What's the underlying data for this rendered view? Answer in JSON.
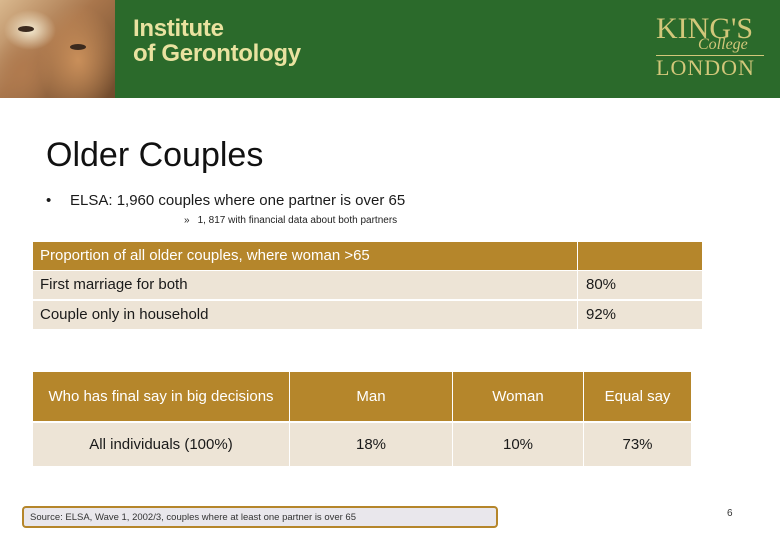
{
  "header": {
    "institute_line1": "Institute",
    "institute_line2": "of Gerontology",
    "logo_line1": "KING'S",
    "logo_line2": "College",
    "logo_line3": "LONDON",
    "banner_color": "#2b6a2b",
    "logo_color": "#d2c77a"
  },
  "slide": {
    "title": "Older Couples",
    "bullet_marker": "•",
    "bullet_text": "ELSA: 1,960 couples where one partner is over 65",
    "sub_marker": "»",
    "sub_text": "1, 817 with financial data about both partners"
  },
  "table1": {
    "header": "Proportion of all older couples, where woman >65",
    "header_value": "",
    "rows": [
      {
        "label": "First marriage for both",
        "value": "80%"
      },
      {
        "label": "Couple only in household",
        "value": "92%"
      }
    ]
  },
  "table2": {
    "headers": [
      "Who has final say in big decisions",
      "Man",
      "Woman",
      "Equal say"
    ],
    "row": [
      "All individuals (100%)",
      "18%",
      "10%",
      "73%"
    ]
  },
  "footer": {
    "source": "Source: ELSA, Wave 1, 2002/3, couples where at least one partner is over 65",
    "page_number": "6"
  },
  "colors": {
    "accent": "#b5862b",
    "row_fill": "#ede4d6"
  }
}
